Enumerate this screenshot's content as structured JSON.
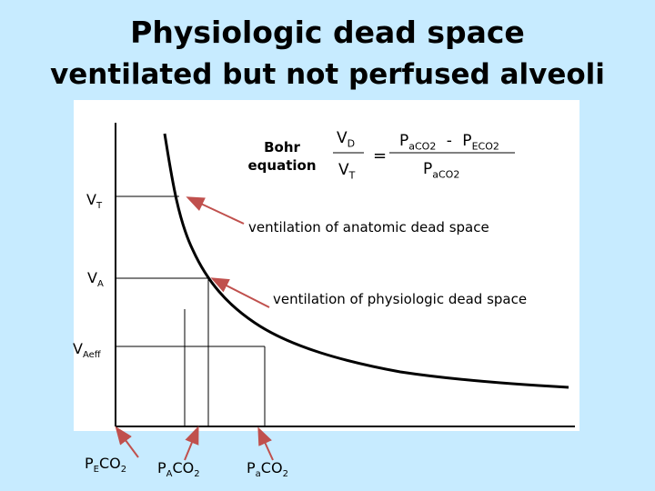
{
  "slide": {
    "title": "Physiologic dead space",
    "subtitle": "ventilated but not perfused alveoli"
  },
  "equation": {
    "label_line1": "Bohr",
    "label_line2": "equation",
    "vd": {
      "main": "V",
      "sub": "D"
    },
    "vt": {
      "main": "V",
      "sub": "T"
    },
    "equals": "=",
    "num_a": {
      "main": "P",
      "sub": "aCO2"
    },
    "minus": "-",
    "num_b": {
      "main": "P",
      "sub": "ECO2"
    },
    "den": {
      "main": "P",
      "sub": "aCO2"
    }
  },
  "y_labels": {
    "vt": {
      "main": "V",
      "sub": "T"
    },
    "va": {
      "main": "V",
      "sub": "A"
    },
    "vaeff": {
      "main": "V",
      "sub": "Aeff"
    }
  },
  "x_labels": {
    "pe": {
      "pre": "P",
      "sub": "E",
      "post": "CO",
      "sub2": "2"
    },
    "pA": {
      "pre": "P",
      "sub": "A",
      "post": "CO",
      "sub2": "2"
    },
    "pa": {
      "pre": "P",
      "sub": "a",
      "post": "CO",
      "sub2": "2"
    }
  },
  "annotations": {
    "anatomic": "ventilation of anatomic dead space",
    "physiologic": "ventilation of physiologic dead space"
  },
  "colors": {
    "background": "#c7ebff",
    "arrow": "#c0504d",
    "curve": "#000000"
  }
}
